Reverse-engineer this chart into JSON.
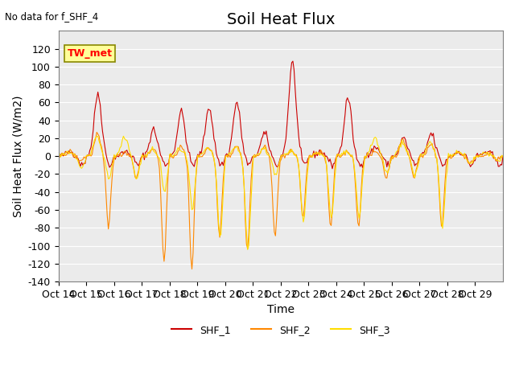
{
  "title": "Soil Heat Flux",
  "ylabel": "Soil Heat Flux (W/m2)",
  "xlabel": "Time",
  "no_data_text": "No data for f_SHF_4",
  "station_label": "TW_met",
  "ylim": [
    -140,
    140
  ],
  "yticks": [
    -140,
    -120,
    -100,
    -80,
    -60,
    -40,
    -20,
    0,
    20,
    40,
    60,
    80,
    100,
    120
  ],
  "x_tick_labels": [
    "Oct 14",
    "Oct 15",
    "Oct 16",
    "Oct 17",
    "Oct 18",
    "Oct 19",
    "Oct 20",
    "Oct 21",
    "Oct 22",
    "Oct 23",
    "Oct 24",
    "Oct 25",
    "Oct 26",
    "Oct 27",
    "Oct 28",
    "Oct 29"
  ],
  "colors": {
    "SHF_1": "#cc0000",
    "SHF_2": "#ff8800",
    "SHF_3": "#ffdd00"
  },
  "title_fontsize": 14,
  "label_fontsize": 10,
  "tick_fontsize": 9
}
